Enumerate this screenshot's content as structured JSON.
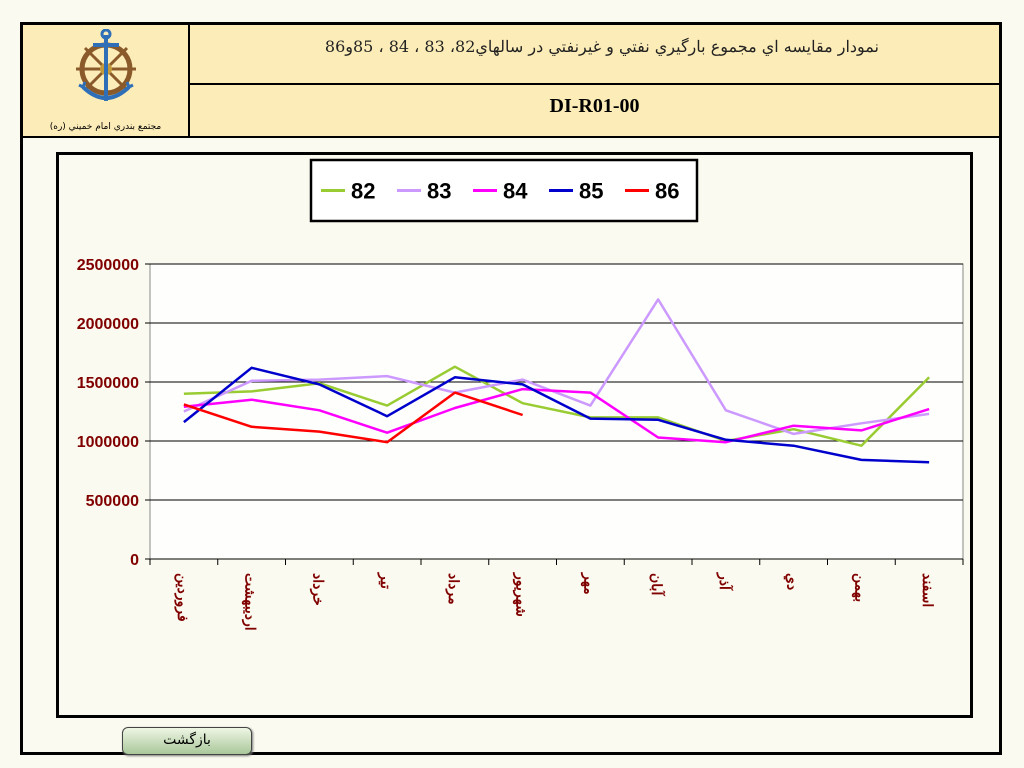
{
  "header": {
    "logo_caption": "مجتمع بندري امام خميني (ره)",
    "title": "نمودار مقايسه اي مجموع بارگيري نفتي و غيرنفتي در سالهاي82، 83 ، 84 ، 85و86",
    "code": "DI-R01-00"
  },
  "back_button": "بازگشت",
  "chart_data": {
    "type": "line",
    "categories": [
      "فروردين",
      "ارديبهشت",
      "خرداد",
      "تير",
      "مرداد",
      "شهريور",
      "مهر",
      "آبان",
      "آذر",
      "دي",
      "بهمن",
      "اسفند"
    ],
    "ylim": [
      0,
      2500000
    ],
    "yticks": [
      "0",
      "500000",
      "1000000",
      "1500000",
      "2000000",
      "2500000"
    ],
    "grid": true,
    "legend_position": "top-center",
    "series": [
      {
        "name": "82",
        "color": "#99cc33",
        "values": [
          1400000,
          1420000,
          1490000,
          1300000,
          1630000,
          1320000,
          1200000,
          1200000,
          1000000,
          1100000,
          960000,
          1540000
        ]
      },
      {
        "name": "83",
        "color": "#cc99ff",
        "values": [
          1250000,
          1510000,
          1520000,
          1550000,
          1410000,
          1520000,
          1300000,
          2200000,
          1260000,
          1060000,
          1150000,
          1230000
        ]
      },
      {
        "name": "84",
        "color": "#ff00ff",
        "values": [
          1290000,
          1350000,
          1260000,
          1070000,
          1280000,
          1440000,
          1410000,
          1030000,
          990000,
          1130000,
          1090000,
          1270000
        ]
      },
      {
        "name": "85",
        "color": "#0000cc",
        "values": [
          1160000,
          1620000,
          1480000,
          1210000,
          1540000,
          1480000,
          1190000,
          1180000,
          1010000,
          960000,
          840000,
          820000
        ]
      },
      {
        "name": "86",
        "color": "#ff0000",
        "values": [
          1310000,
          1120000,
          1080000,
          990000,
          1410000,
          1220000,
          null,
          null,
          null,
          null,
          null,
          null
        ]
      }
    ]
  }
}
